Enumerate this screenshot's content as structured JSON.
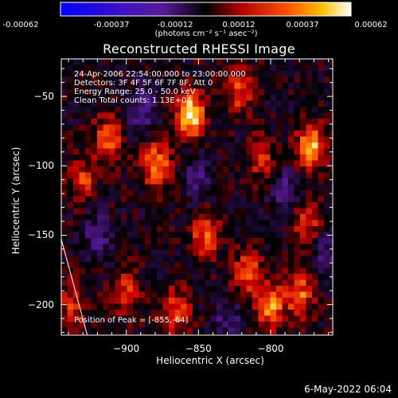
{
  "chart_data": {
    "type": "heatmap",
    "title": "Reconstructed RHESSI Image",
    "xlabel": "Heliocentric X (arcsec)",
    "ylabel": "Heliocentric Y (arcsec)",
    "xlim": [
      -945,
      -757
    ],
    "ylim": [
      -222,
      -23
    ],
    "x_ticks": [
      -900,
      -850,
      -800
    ],
    "y_ticks": [
      -50,
      -100,
      -150,
      -200
    ],
    "colorbar": {
      "ticks": [
        "-0.00062",
        "-0.00037",
        "-0.00012",
        "0.00012",
        "0.00037",
        "0.00062"
      ],
      "unit_label": "(photons cm⁻² s⁻¹ asec⁻²)",
      "range": [
        -0.00062,
        0.00062
      ],
      "colormap": [
        "#0000ff",
        "#5a1a9a",
        "#000000",
        "#c80000",
        "#ff6a00",
        "#ffffff"
      ]
    },
    "annotations": [
      "24-Apr-2006 22:54:00.000 to 23:00:00.000",
      "Detectors: 3F 4F 5F 6F 7F 8F, Att 0",
      "Energy Range: 25.0 - 50.0 keV",
      "Clean    Total counts: 1.13E+04"
    ],
    "peak_label": "Position of Peak = [-855,-64]",
    "peak": {
      "x": -855,
      "y": -64
    },
    "hotspots": [
      {
        "x": -855,
        "y": -63,
        "value": 0.00062
      },
      {
        "x": -772,
        "y": -86,
        "value": 0.00055
      },
      {
        "x": -879,
        "y": -100,
        "value": 0.00048
      },
      {
        "x": -912,
        "y": -80,
        "value": 0.0004
      },
      {
        "x": -845,
        "y": -150,
        "value": 0.00038
      },
      {
        "x": -816,
        "y": -178,
        "value": 0.0004
      },
      {
        "x": -800,
        "y": -200,
        "value": 0.00045
      },
      {
        "x": -780,
        "y": -193,
        "value": 0.0004
      },
      {
        "x": -866,
        "y": -205,
        "value": 0.00037
      },
      {
        "x": -900,
        "y": -190,
        "value": 0.0003
      },
      {
        "x": -930,
        "y": -110,
        "value": 0.0003
      },
      {
        "x": -822,
        "y": -46,
        "value": 0.00033
      },
      {
        "x": -775,
        "y": -140,
        "value": 0.0003
      },
      {
        "x": -938,
        "y": -200,
        "value": 0.00028
      },
      {
        "x": -806,
        "y": -95,
        "value": 0.00025
      }
    ],
    "coldspots": [
      {
        "x": -890,
        "y": -60,
        "value": -0.0003
      },
      {
        "x": -790,
        "y": -120,
        "value": -0.0003
      },
      {
        "x": -920,
        "y": -150,
        "value": -0.00025
      },
      {
        "x": -850,
        "y": -110,
        "value": -0.00022
      },
      {
        "x": -760,
        "y": -165,
        "value": -0.00022
      },
      {
        "x": -830,
        "y": -210,
        "value": -0.0002
      }
    ],
    "limb": [
      [
        -945,
        -153
      ],
      [
        -938,
        -222
      ]
    ]
  },
  "timestamp": "6-May-2022 06:04"
}
